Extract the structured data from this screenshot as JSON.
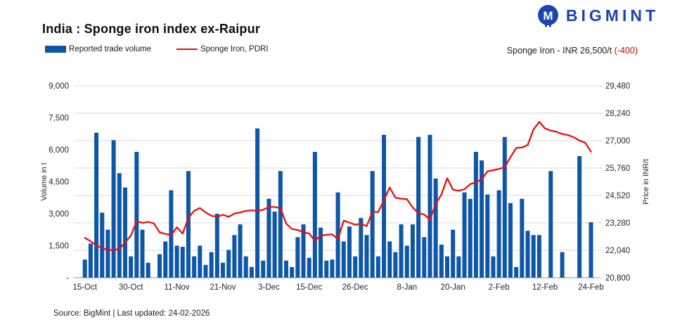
{
  "logo": {
    "brand": "BIGMINT"
  },
  "header": {
    "title": "India : Sponge iron index ex-Raipur",
    "price_label": "Sponge Iron - INR 26,500/t ",
    "price_change": "(-400)"
  },
  "legend": [
    {
      "label": "Reported trade volume",
      "type": "bar",
      "color": "#0d56a8"
    },
    {
      "label": "Sponge Iron, PDRI",
      "type": "line",
      "color": "#e81010"
    }
  ],
  "footer": {
    "text": "Source: BigMint | Last updated: 24-02-2026"
  },
  "colors": {
    "bar": "#0d56a8",
    "line": "#e81010",
    "grid": "#d9d9d9",
    "axis": "#9a9a9a",
    "tick": "#bfbfbf",
    "tick_text": "#262626",
    "brand": "#1c44ad",
    "negative": "#e00000"
  },
  "chart_data": {
    "type": "bar+line",
    "title": "India : Sponge iron index ex-Raipur",
    "grid": "horizontal",
    "legend_position": "top-left",
    "left_axis": {
      "label": "Volume in t",
      "min": 0,
      "max": 9000,
      "ticks": [
        "-",
        "1,500",
        "3,000",
        "4,500",
        "6,000",
        "7,500",
        "9,000"
      ]
    },
    "right_axis": {
      "label": "Price in INR/t",
      "min": 20800,
      "max": 29480,
      "ticks": [
        "20,800",
        "22,040",
        "23,280",
        "24,520",
        "25,760",
        "27,000",
        "28,240",
        "29,480"
      ]
    },
    "x_axis": {
      "tick_labels": [
        "15-Oct",
        "30-Oct",
        "11-Nov",
        "21-Nov",
        "3-Dec",
        "15-Dec",
        "26-Dec",
        "8-Jan",
        "20-Jan",
        "2-Feb",
        "12-Feb",
        "24-Feb"
      ],
      "tick_indices": [
        0,
        8,
        16,
        24,
        32,
        39,
        47,
        56,
        64,
        72,
        80,
        88
      ]
    },
    "series": [
      {
        "name": "Reported trade volume",
        "type": "bar",
        "axis": "left",
        "values": [
          850,
          1600,
          6800,
          3050,
          2250,
          6450,
          4900,
          4230,
          1000,
          5900,
          2250,
          700,
          0,
          1100,
          1700,
          4100,
          1500,
          1450,
          5000,
          1000,
          1500,
          600,
          1200,
          3000,
          700,
          1300,
          2000,
          2500,
          1000,
          500,
          7000,
          800,
          3700,
          3100,
          5000,
          800,
          500,
          1900,
          2500,
          930,
          5900,
          2350,
          800,
          850,
          4000,
          1700,
          2400,
          1000,
          2800,
          2000,
          5000,
          1000,
          6700,
          1700,
          1200,
          2500,
          1500,
          2500,
          6600,
          1900,
          6700,
          4650,
          1550,
          1000,
          2250,
          1000,
          4000,
          3700,
          5900,
          5500,
          3900,
          1000,
          4100,
          6600,
          3500,
          500,
          3700,
          2200,
          2000,
          2000,
          0,
          5000,
          0,
          1200,
          0,
          0,
          5700,
          0,
          2600
        ]
      },
      {
        "name": "Sponge Iron, PDRI",
        "type": "line",
        "axis": "right",
        "values": [
          22600,
          22450,
          22250,
          22150,
          22050,
          22050,
          22100,
          22400,
          22700,
          23350,
          23280,
          23320,
          23250,
          22850,
          22780,
          22730,
          23080,
          22790,
          23500,
          23820,
          23950,
          23750,
          23600,
          23550,
          23650,
          23550,
          23700,
          23750,
          23820,
          23850,
          23820,
          23870,
          24000,
          24000,
          23950,
          23250,
          23000,
          22960,
          22850,
          22800,
          22470,
          22700,
          22740,
          22760,
          22550,
          23380,
          23290,
          23190,
          23240,
          23130,
          23790,
          23770,
          24300,
          24880,
          24420,
          24370,
          24350,
          23980,
          23720,
          23660,
          23420,
          24140,
          24560,
          25300,
          24780,
          24730,
          24800,
          25030,
          25110,
          25250,
          25610,
          25660,
          25720,
          25800,
          26250,
          26670,
          26690,
          26800,
          27500,
          27850,
          27550,
          27450,
          27400,
          27300,
          27250,
          27150,
          27000,
          26900,
          26500
        ]
      }
    ]
  }
}
